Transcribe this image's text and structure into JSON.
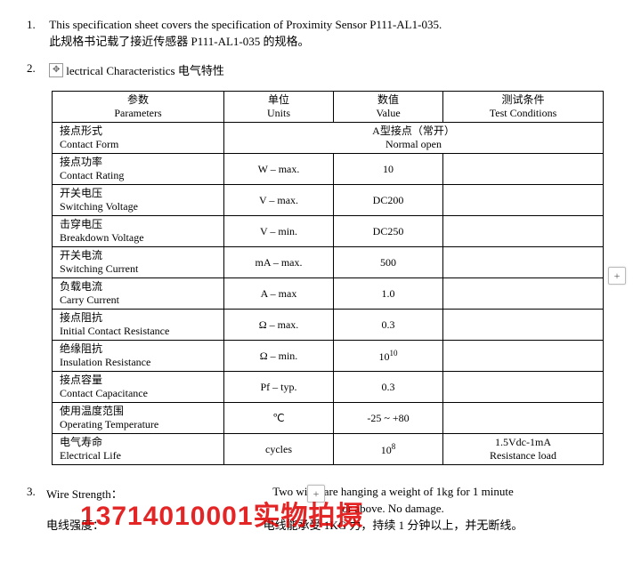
{
  "item1": {
    "num": "1.",
    "en": "This specification sheet covers the specification of Proximity Sensor P111-AL1-035.",
    "cn": "此规格书记载了接近传感器 P111-AL1-035 的规格。"
  },
  "item2": {
    "num": "2.",
    "title": "lectrical Characteristics  电气特性"
  },
  "headers": {
    "param_cn": "参数",
    "param_en": "Parameters",
    "unit_cn": "单位",
    "unit_en": "Units",
    "value_cn": "数值",
    "value_en": "Value",
    "cond_cn": "测试条件",
    "cond_en": "Test Conditions"
  },
  "contact_form": {
    "p_cn": "接点形式",
    "p_en": "Contact Form",
    "v_cn": "A型接点（常开）",
    "v_en": "Normal open"
  },
  "rows": [
    {
      "p_cn": "接点功率",
      "p_en": "Contact Rating",
      "unit": "W – max.",
      "value": "10",
      "cond": ""
    },
    {
      "p_cn": "开关电压",
      "p_en": "Switching Voltage",
      "unit": "V – max.",
      "value": "DC200",
      "cond": ""
    },
    {
      "p_cn": "击穿电压",
      "p_en": "Breakdown Voltage",
      "unit": "V – min.",
      "value": "DC250",
      "cond": ""
    },
    {
      "p_cn": "开关电流",
      "p_en": "Switching Current",
      "unit": "mA – max.",
      "value": "500",
      "cond": ""
    },
    {
      "p_cn": "负载电流",
      "p_en": "Carry Current",
      "unit": "A – max",
      "value": "1.0",
      "cond": ""
    },
    {
      "p_cn": "接点阻抗",
      "p_en": "Initial Contact Resistance",
      "unit": "Ω – max.",
      "value": "0.3",
      "cond": ""
    },
    {
      "p_cn": "绝缘阻抗",
      "p_en": "Insulation Resistance",
      "unit": "Ω – min.",
      "value_html": "10<sup>10</sup>",
      "cond": ""
    },
    {
      "p_cn": "接点容量",
      "p_en": "Contact Capacitance",
      "unit": "Pf – typ.",
      "value": "0.3",
      "cond": ""
    },
    {
      "p_cn": "使用温度范围",
      "p_en": "Operating Temperature",
      "unit": "℃",
      "value": "-25 ~ +80",
      "cond": ""
    },
    {
      "p_cn": "电气寿命",
      "p_en": "Electrical Life",
      "unit": "cycles",
      "value_html": "10<sup>8</sup>",
      "cond_cn": "1.5Vdc-1mA",
      "cond_en": "Resistance load"
    }
  ],
  "item3": {
    "num": "3.",
    "label_en": "Wire Strength：",
    "text_en1": "Two wires are hanging a weight of 1kg for 1 minute",
    "text_en2": "or above. No damage.",
    "label_cn": "电线强度：",
    "text_cn": "电线能承受 1KG 力，持续 1 分钟以上，并无断线。"
  },
  "watermark": "13714010001实物拍摄",
  "plus": "+"
}
